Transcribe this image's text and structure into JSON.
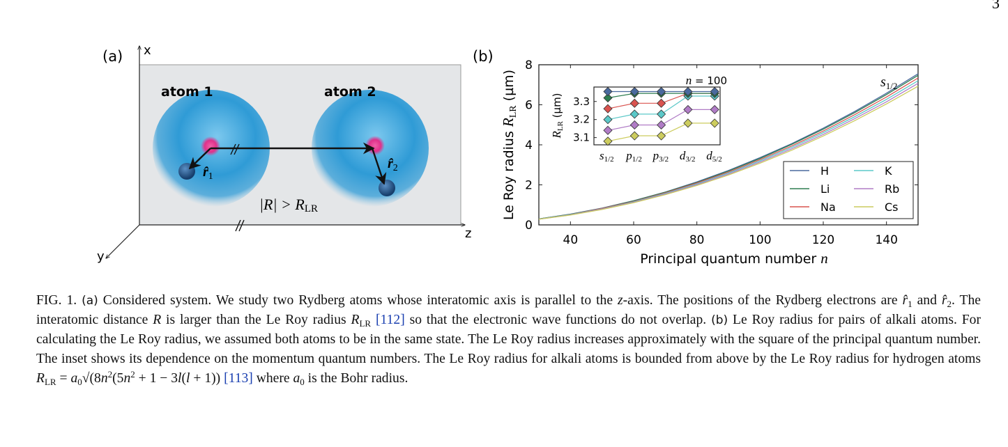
{
  "page_number": "3",
  "panel_a": {
    "label": "(a)",
    "atom1": "atom 1",
    "atom2": "atom 2",
    "r1": {
      "main": "r̂",
      "sub": "1"
    },
    "r2": {
      "main": "r̂",
      "sub": "2"
    },
    "distance": {
      "lhs": "|R| > R",
      "sub": "LR"
    },
    "axes": {
      "x": "x",
      "y": "y",
      "z": "z"
    },
    "colors": {
      "cloud": "#2f9bd6",
      "nucleus": "#e0308a",
      "electron": "#1f4f86",
      "plane": "#e4e6e8"
    }
  },
  "panel_b": {
    "label": "(b)"
  },
  "chart_data": [
    {
      "type": "line",
      "xlabel": {
        "text": "Principal quantum number ",
        "var": "n"
      },
      "ylabel": {
        "text": "Le Roy radius ",
        "var": "R",
        "sub": "LR",
        "unit": " (µm)"
      },
      "annotation": {
        "main": "s",
        "sub": "1/2"
      },
      "xlim": [
        30,
        150
      ],
      "ylim": [
        0,
        8
      ],
      "xticks": [
        "40",
        "60",
        "80",
        "100",
        "120",
        "140"
      ],
      "yticks": [
        "0",
        "2",
        "4",
        "6",
        "8"
      ],
      "grid": false,
      "legend_placement": "bottom-right",
      "x": [
        30,
        40,
        50,
        60,
        70,
        80,
        90,
        100,
        110,
        120,
        130,
        140,
        150
      ],
      "series": [
        {
          "name": "H",
          "color": "#4a6a9e",
          "values": [
            0.3,
            0.54,
            0.84,
            1.21,
            1.64,
            2.15,
            2.72,
            3.36,
            4.06,
            4.83,
            5.67,
            6.58,
            7.55
          ]
        },
        {
          "name": "Li",
          "color": "#2e7d50",
          "values": [
            0.3,
            0.53,
            0.83,
            1.2,
            1.63,
            2.12,
            2.69,
            3.32,
            4.02,
            4.78,
            5.61,
            6.51,
            7.47
          ]
        },
        {
          "name": "Na",
          "color": "#d9534f",
          "values": [
            0.29,
            0.52,
            0.82,
            1.17,
            1.6,
            2.09,
            2.64,
            3.26,
            3.94,
            4.69,
            5.51,
            6.39,
            7.34
          ]
        },
        {
          "name": "K",
          "color": "#5bc8c8",
          "values": [
            0.29,
            0.51,
            0.8,
            1.15,
            1.57,
            2.05,
            2.59,
            3.2,
            3.87,
            4.61,
            5.41,
            6.27,
            7.2
          ]
        },
        {
          "name": "Rb",
          "color": "#b07cc6",
          "values": [
            0.28,
            0.5,
            0.79,
            1.13,
            1.54,
            2.01,
            2.54,
            3.14,
            3.8,
            4.52,
            5.31,
            6.15,
            7.07
          ]
        },
        {
          "name": "Cs",
          "color": "#cccc5e",
          "values": [
            0.28,
            0.49,
            0.77,
            1.11,
            1.51,
            1.97,
            2.49,
            3.08,
            3.73,
            4.44,
            5.21,
            6.04,
            6.93
          ]
        }
      ]
    },
    {
      "type": "line",
      "title": {
        "lhs": "n",
        "rhs": " = 100"
      },
      "ylabel": {
        "var": "R",
        "sub": "LR",
        "unit": " (µm)"
      },
      "ylim": [
        3.06,
        3.38
      ],
      "yticks": [
        "3.1",
        "3.2",
        "3.3"
      ],
      "categories": [
        {
          "main": "s",
          "sub": "1/2"
        },
        {
          "main": "p",
          "sub": "1/2"
        },
        {
          "main": "p",
          "sub": "3/2"
        },
        {
          "main": "d",
          "sub": "3/2"
        },
        {
          "main": "d",
          "sub": "5/2"
        }
      ],
      "marker": "diamond",
      "series": [
        {
          "name": "H",
          "values": [
            3.355,
            3.355,
            3.355,
            3.355,
            3.355
          ]
        },
        {
          "name": "Li",
          "values": [
            3.32,
            3.345,
            3.345,
            3.345,
            3.345
          ]
        },
        {
          "name": "Na",
          "values": [
            3.26,
            3.29,
            3.29,
            3.345,
            3.345
          ]
        },
        {
          "name": "K",
          "values": [
            3.2,
            3.23,
            3.23,
            3.33,
            3.33
          ]
        },
        {
          "name": "Rb",
          "values": [
            3.14,
            3.17,
            3.17,
            3.255,
            3.255
          ]
        },
        {
          "name": "Cs",
          "values": [
            3.08,
            3.11,
            3.11,
            3.18,
            3.18
          ]
        }
      ]
    }
  ],
  "caption": [
    {
      "t": "text",
      "v": "FIG. 1. "
    },
    {
      "t": "sans",
      "v": "(a)"
    },
    {
      "t": "text",
      "v": " Considered system. We study two Rydberg atoms whose interatomic axis is parallel to the "
    },
    {
      "t": "math",
      "v": "z"
    },
    {
      "t": "text",
      "v": "-axis. The positions of the Rydberg electrons are "
    },
    {
      "t": "math",
      "v": "r̂"
    },
    {
      "t": "sub",
      "v": "1"
    },
    {
      "t": "text",
      "v": " and "
    },
    {
      "t": "math",
      "v": "r̂"
    },
    {
      "t": "sub",
      "v": "2"
    },
    {
      "t": "text",
      "v": ". The interatomic distance "
    },
    {
      "t": "math",
      "v": "R"
    },
    {
      "t": "text",
      "v": " is larger than the Le Roy radius "
    },
    {
      "t": "math",
      "v": "R"
    },
    {
      "t": "sub",
      "v": "LR"
    },
    {
      "t": "text",
      "v": " "
    },
    {
      "t": "link",
      "v": "[112]"
    },
    {
      "t": "text",
      "v": " so that the electronic wave functions do not overlap. "
    },
    {
      "t": "sans",
      "v": "(b)"
    },
    {
      "t": "text",
      "v": " Le Roy radius for pairs of alkali atoms. For calculating the Le Roy radius, we assumed both atoms to be in the same state. The Le Roy radius increases approximately with the square of the principal quantum number. The inset shows its dependence on the momentum quantum numbers. The Le Roy radius for alkali atoms is bounded from above by the Le Roy radius for hydrogen atoms "
    },
    {
      "t": "math",
      "v": "R"
    },
    {
      "t": "sub",
      "v": "LR"
    },
    {
      "t": "text",
      "v": " = "
    },
    {
      "t": "math",
      "v": "a"
    },
    {
      "t": "sub",
      "v": "0"
    },
    {
      "t": "text",
      "v": "√(8"
    },
    {
      "t": "math",
      "v": "n"
    },
    {
      "t": "sup",
      "v": "2"
    },
    {
      "t": "text",
      "v": "(5"
    },
    {
      "t": "math",
      "v": "n"
    },
    {
      "t": "sup",
      "v": "2"
    },
    {
      "t": "text",
      "v": " + 1 − 3"
    },
    {
      "t": "math",
      "v": "l"
    },
    {
      "t": "text",
      "v": "("
    },
    {
      "t": "math",
      "v": "l"
    },
    {
      "t": "text",
      "v": " + 1))"
    },
    {
      "t": "text",
      "v": " "
    },
    {
      "t": "link",
      "v": "[113]"
    },
    {
      "t": "text",
      "v": " where "
    },
    {
      "t": "math",
      "v": "a"
    },
    {
      "t": "sub",
      "v": "0"
    },
    {
      "t": "text",
      "v": " is the Bohr radius."
    }
  ]
}
